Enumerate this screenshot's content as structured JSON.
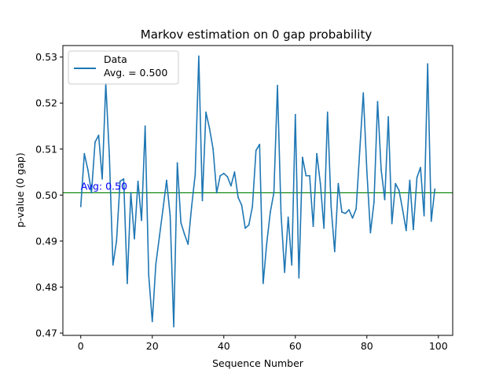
{
  "chart_data": {
    "type": "line",
    "title": "Markov estimation on 0 gap probability",
    "xlabel": "Sequence Number",
    "ylabel": "p-value (0 gap)",
    "xlim": [
      -5,
      104
    ],
    "ylim": [
      0.4695,
      0.5325
    ],
    "xticks": [
      0,
      20,
      40,
      60,
      80,
      100
    ],
    "yticks": [
      0.47,
      0.48,
      0.49,
      0.5,
      0.51,
      0.52,
      0.53
    ],
    "ytick_labels": [
      "0.47",
      "0.48",
      "0.49",
      "0.50",
      "0.51",
      "0.52",
      "0.53"
    ],
    "grid": false,
    "legend": {
      "placement": "upper-left",
      "entries": [
        {
          "line1": "Data",
          "line2": "Avg. = 0.500"
        }
      ]
    },
    "hline": {
      "y": 0.5005,
      "color": "#008000"
    },
    "annotation": {
      "text": "Avg: 0.50",
      "x": 0,
      "y": 0.5012,
      "color": "#0000ff"
    },
    "series": [
      {
        "color": "#1f77b4",
        "x": [
          0,
          1,
          2,
          3,
          4,
          5,
          6,
          7,
          8,
          9,
          10,
          11,
          12,
          13,
          14,
          15,
          16,
          17,
          18,
          19,
          20,
          21,
          22,
          23,
          24,
          25,
          26,
          27,
          28,
          29,
          30,
          31,
          32,
          33,
          34,
          35,
          36,
          37,
          38,
          39,
          40,
          41,
          42,
          43,
          44,
          45,
          46,
          47,
          48,
          49,
          50,
          51,
          52,
          53,
          54,
          55,
          56,
          57,
          58,
          59,
          60,
          61,
          62,
          63,
          64,
          65,
          66,
          67,
          68,
          69,
          70,
          71,
          72,
          73,
          74,
          75,
          76,
          77,
          78,
          79,
          80,
          81,
          82,
          83,
          84,
          85,
          86,
          87,
          88,
          89,
          90,
          91,
          92,
          93,
          94,
          95,
          96,
          97,
          98,
          99
        ],
        "values": [
          0.4975,
          0.509,
          0.5055,
          0.5005,
          0.5115,
          0.513,
          0.5035,
          0.5243,
          0.5085,
          0.4848,
          0.49,
          0.503,
          0.5035,
          0.4808,
          0.5005,
          0.4905,
          0.503,
          0.4945,
          0.515,
          0.4826,
          0.4725,
          0.485,
          0.491,
          0.497,
          0.5032,
          0.4955,
          0.4714,
          0.507,
          0.494,
          0.4915,
          0.4893,
          0.4975,
          0.5045,
          0.5302,
          0.4988,
          0.518,
          0.5145,
          0.51,
          0.5005,
          0.5042,
          0.5047,
          0.504,
          0.502,
          0.505,
          0.4995,
          0.4978,
          0.4928,
          0.4935,
          0.4975,
          0.5097,
          0.511,
          0.4808,
          0.4895,
          0.4963,
          0.5005,
          0.5238,
          0.496,
          0.4832,
          0.4952,
          0.4848,
          0.5175,
          0.482,
          0.5082,
          0.5042,
          0.5042,
          0.4932,
          0.509,
          0.5025,
          0.4928,
          0.518,
          0.4975,
          0.4877,
          0.5025,
          0.4963,
          0.496,
          0.4968,
          0.495,
          0.497,
          0.5095,
          0.5222,
          0.5052,
          0.4918,
          0.4985,
          0.5203,
          0.5055,
          0.499,
          0.517,
          0.4938,
          0.5025,
          0.501,
          0.4968,
          0.4923,
          0.5032,
          0.4925,
          0.5038,
          0.506,
          0.4955,
          0.5285,
          0.4943,
          0.5013
        ]
      }
    ]
  }
}
